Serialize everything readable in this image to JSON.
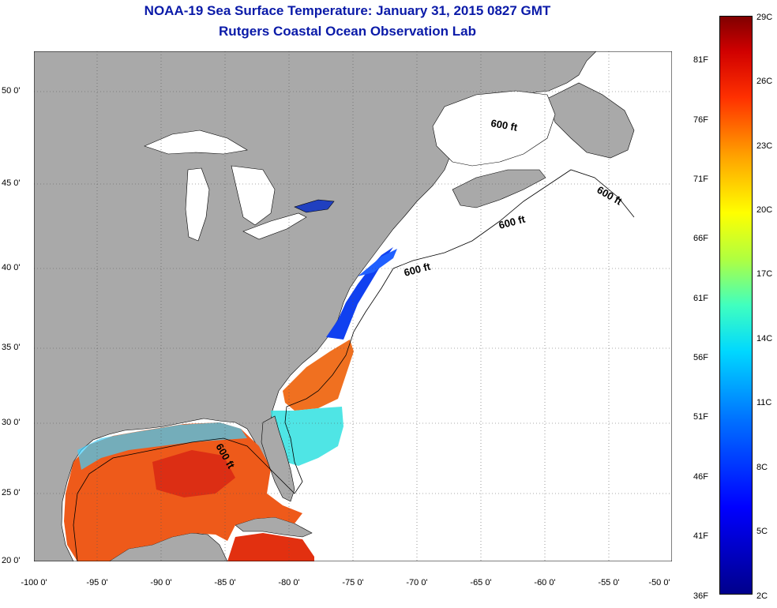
{
  "title_line1": "NOAA-19 Sea Surface Temperature:  January 31, 2015 0827 GMT",
  "title_line2": "Rutgers Coastal Ocean Observation Lab",
  "lat_labels": [
    "50 0'",
    "45 0'",
    "40 0'",
    "35 0'",
    "30 0'",
    "25 0'",
    "20 0'"
  ],
  "lon_labels": [
    "-100 0'",
    "-95 0'",
    "-90 0'",
    "-85 0'",
    "-80 0'",
    "-75 0'",
    "-70 0'",
    "-65 0'",
    "-60 0'",
    "-55 0'",
    "-50 0'"
  ],
  "contour_label": "600 ft",
  "colorbar": {
    "fahrenheit": [
      "81F",
      "76F",
      "71F",
      "66F",
      "61F",
      "56F",
      "51F",
      "46F",
      "41F",
      "36F"
    ],
    "celsius": [
      "29C",
      "26C",
      "23C",
      "20C",
      "17C",
      "14C",
      "11C",
      "8C",
      "5C",
      "2C"
    ]
  },
  "colors": {
    "land": "#a9a9a9",
    "ocean_nodata": "#ffffff",
    "title": "#0a1aa8"
  }
}
